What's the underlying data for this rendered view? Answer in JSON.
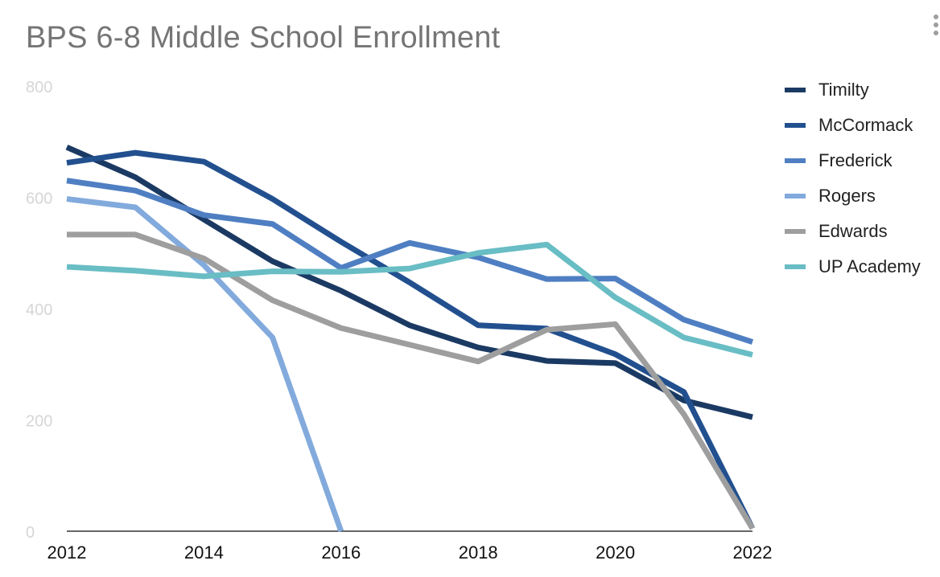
{
  "chart_data": {
    "type": "line",
    "title": "BPS 6-8 Middle School Enrollment",
    "xlabel": "",
    "ylabel": "",
    "x": [
      2012,
      2013,
      2014,
      2015,
      2016,
      2017,
      2018,
      2019,
      2020,
      2021,
      2022
    ],
    "xlim": [
      2012,
      2022
    ],
    "ylim": [
      0,
      800
    ],
    "x_ticks": [
      2012,
      2014,
      2016,
      2018,
      2020,
      2022
    ],
    "y_ticks": [
      0,
      200,
      400,
      600,
      800
    ],
    "grid": false,
    "legend_position": "right",
    "series": [
      {
        "name": "Timilty",
        "color": "#1b3a63",
        "values": [
          690,
          636,
          560,
          485,
          432,
          370,
          330,
          306,
          302,
          235,
          205
        ]
      },
      {
        "name": "McCormack",
        "color": "#22508f",
        "values": [
          662,
          680,
          664,
          597,
          520,
          447,
          370,
          364,
          318,
          250,
          5
        ]
      },
      {
        "name": "Frederick",
        "color": "#4f7fc2",
        "values": [
          630,
          612,
          568,
          552,
          473,
          518,
          492,
          453,
          454,
          380,
          340
        ]
      },
      {
        "name": "Rogers",
        "color": "#82aadc",
        "x": [
          2012,
          2013,
          2014,
          2015,
          2016
        ],
        "values": [
          597,
          582,
          478,
          348,
          0
        ]
      },
      {
        "name": "Edwards",
        "color": "#9e9e9e",
        "values": [
          533,
          533,
          490,
          415,
          365,
          335,
          305,
          362,
          372,
          210,
          5
        ]
      },
      {
        "name": "UP Academy",
        "color": "#69bdc4",
        "values": [
          475,
          468,
          458,
          467,
          466,
          472,
          500,
          515,
          420,
          348,
          317
        ]
      }
    ]
  }
}
